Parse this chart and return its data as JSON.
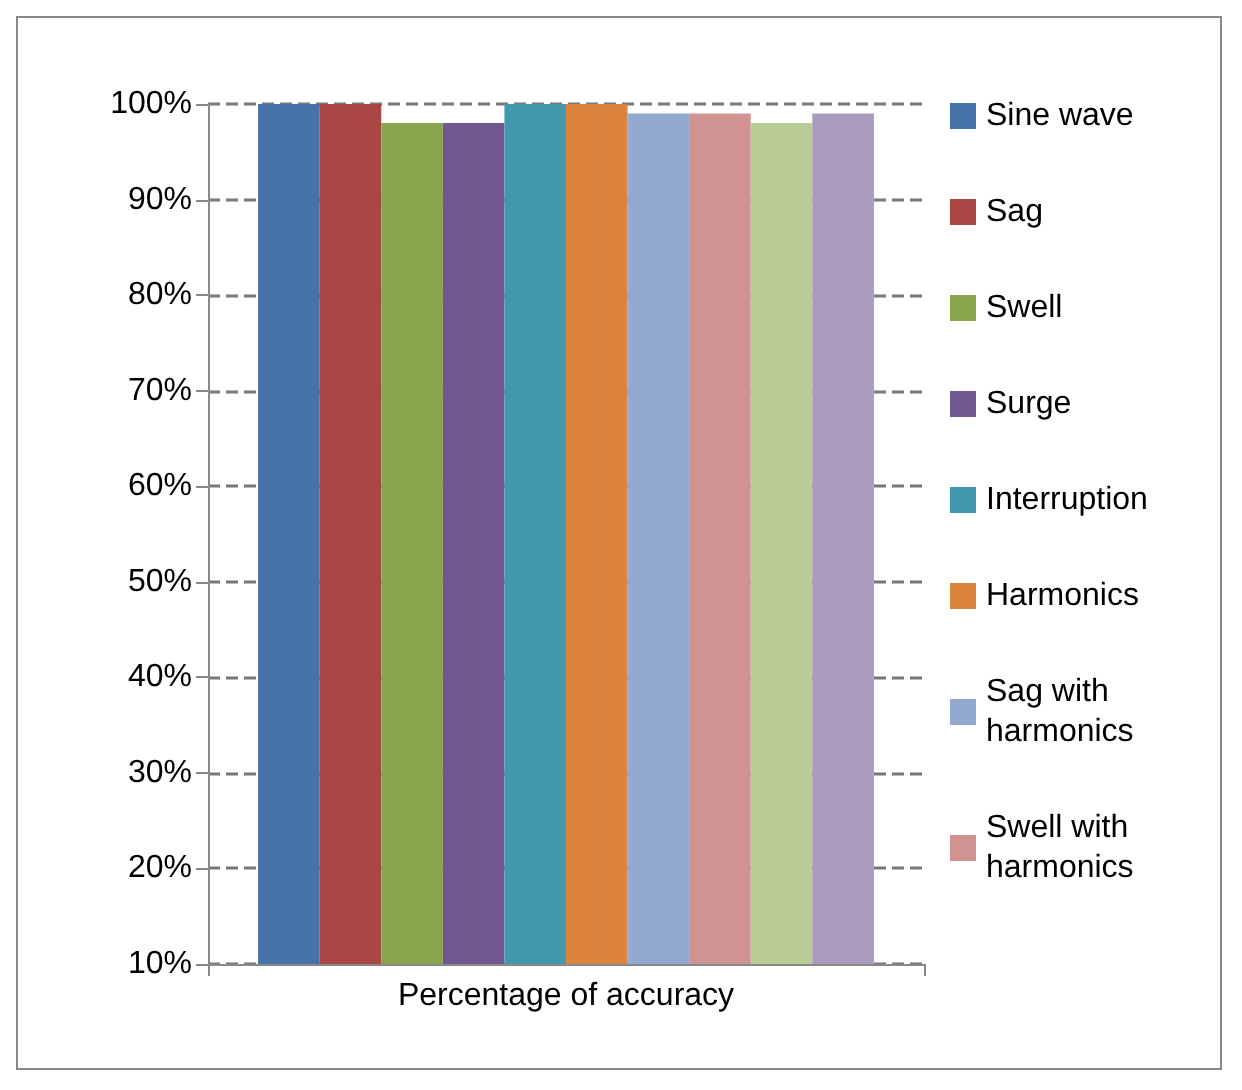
{
  "chart_data": {
    "type": "bar",
    "categories": [
      "Percentage of accuracy"
    ],
    "series": [
      {
        "name": "Sine wave",
        "color": "#4572a7",
        "values": [
          100
        ]
      },
      {
        "name": "Sag",
        "color": "#aa4643",
        "values": [
          100
        ]
      },
      {
        "name": "Swell",
        "color": "#89a54e",
        "values": [
          98
        ]
      },
      {
        "name": "Surge",
        "color": "#71588f",
        "values": [
          98
        ]
      },
      {
        "name": "Interruption",
        "color": "#4198af",
        "values": [
          100
        ]
      },
      {
        "name": "Harmonics",
        "color": "#db843d",
        "values": [
          100
        ]
      },
      {
        "name": "Sag with harmonics",
        "color": "#93a9cf",
        "values": [
          99
        ]
      },
      {
        "name": "Swell with harmonics",
        "color": "#d19392",
        "values": [
          99
        ]
      },
      {
        "color": "#b9cd96",
        "values": [
          98
        ]
      },
      {
        "color": "#a99bbd",
        "values": [
          99
        ]
      }
    ],
    "ylim": [
      10,
      100
    ],
    "yticks": [
      {
        "value": 10,
        "label": "10%"
      },
      {
        "value": 20,
        "label": "20%"
      },
      {
        "value": 30,
        "label": "30%"
      },
      {
        "value": 40,
        "label": "40%"
      },
      {
        "value": 50,
        "label": "50%"
      },
      {
        "value": 60,
        "label": "60%"
      },
      {
        "value": 70,
        "label": "70%"
      },
      {
        "value": 80,
        "label": "80%"
      },
      {
        "value": 90,
        "label": "90%"
      },
      {
        "value": 100,
        "label": "100%"
      }
    ],
    "grid": "y",
    "legend": "right"
  }
}
